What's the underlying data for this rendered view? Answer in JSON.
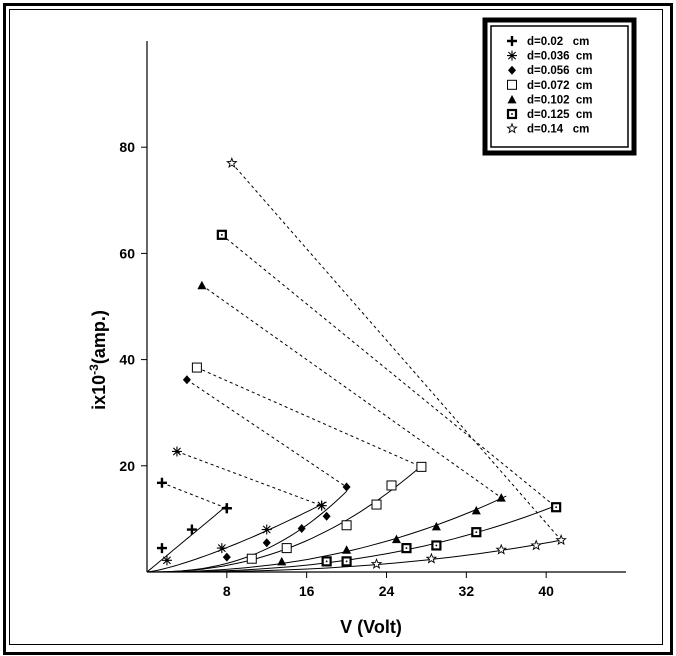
{
  "chart_data": {
    "type": "scatter",
    "xlabel": "V (Volt)",
    "ylabel": {
      "base": "ix10",
      "exp": "-3",
      "unit": "(amp.)"
    },
    "x_ticks": [
      8,
      16,
      24,
      32,
      40
    ],
    "y_ticks": [
      20,
      40,
      60,
      80
    ],
    "xlim": [
      0,
      48
    ],
    "ylim": [
      0,
      100
    ],
    "legend_position": "top-right",
    "grid": false,
    "series": [
      {
        "name": "d=0.02   cm",
        "marker": "plus",
        "points": [
          [
            1.5,
            4.5
          ],
          [
            4.5,
            8
          ],
          [
            8,
            12
          ]
        ],
        "end": [
          8,
          12
        ],
        "peak": [
          1.5,
          16.8
        ],
        "fit_to": [
          8,
          12.5
        ]
      },
      {
        "name": "d=0.036  cm",
        "marker": "asterisk",
        "points": [
          [
            2,
            2.2
          ],
          [
            7.5,
            4.5
          ],
          [
            12,
            8
          ],
          [
            17.5,
            12.5
          ]
        ],
        "end": [
          17.5,
          12.5
        ],
        "peak": [
          3,
          22.7
        ],
        "fit_to": [
          18,
          13.2
        ]
      },
      {
        "name": "d=0.056  cm",
        "marker": "diamond",
        "points": [
          [
            8,
            2.8
          ],
          [
            12,
            5.5
          ],
          [
            15.5,
            8.2
          ],
          [
            18,
            10.5
          ]
        ],
        "end": [
          20,
          16
        ],
        "peak": [
          4,
          36.2
        ],
        "fit_to": [
          20,
          15.2
        ]
      },
      {
        "name": "d=0.072  cm",
        "marker": "square",
        "points": [
          [
            10.5,
            2.5
          ],
          [
            14,
            4.5
          ],
          [
            20,
            8.8
          ],
          [
            23,
            12.7
          ],
          [
            24.5,
            16.3
          ]
        ],
        "end": [
          27.5,
          19.8
        ],
        "peak": [
          5,
          38.5
        ],
        "fit_to": [
          27.5,
          20
        ]
      },
      {
        "name": "d=0.102  cm",
        "marker": "triangle",
        "points": [
          [
            13.5,
            2
          ],
          [
            20,
            4.2
          ],
          [
            25,
            6.2
          ],
          [
            29,
            8.6
          ],
          [
            33,
            11.6
          ]
        ],
        "end": [
          35.5,
          14
        ],
        "peak": [
          5.5,
          54
        ],
        "fit_to": [
          36,
          14.3
        ]
      },
      {
        "name": "d=0.125  cm",
        "marker": "square-dot",
        "points": [
          [
            18,
            2
          ],
          [
            20,
            2
          ],
          [
            26,
            4.5
          ],
          [
            29,
            5
          ],
          [
            33,
            7.5
          ]
        ],
        "end": [
          41,
          12.2
        ],
        "peak": [
          7.5,
          63.5
        ],
        "fit_to": [
          41,
          12.5
        ]
      },
      {
        "name": "d=0.14   cm",
        "marker": "star",
        "points": [
          [
            23,
            1.5
          ],
          [
            28.5,
            2.5
          ],
          [
            35.5,
            4.2
          ],
          [
            39,
            5
          ]
        ],
        "end": [
          41.5,
          6
        ],
        "peak": [
          8.5,
          77
        ],
        "fit_to": [
          41.5,
          6
        ]
      }
    ]
  }
}
